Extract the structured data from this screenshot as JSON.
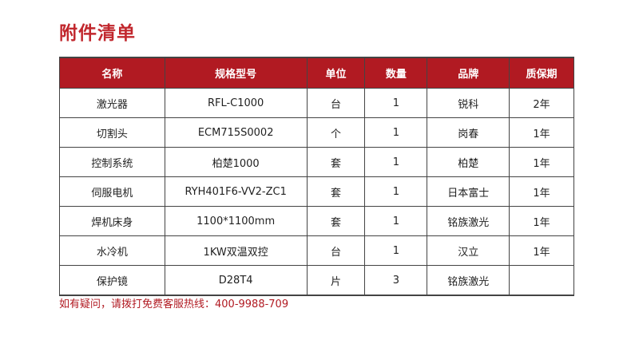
{
  "title": "附件清单",
  "headers": [
    "名称",
    "规格型号",
    "单位",
    "数量",
    "品牌",
    "质保期"
  ],
  "rows": [
    [
      "激光器",
      "RFL-C1000",
      "台",
      "1",
      "锐科",
      "2年"
    ],
    [
      "切割头",
      "ECM715S0002",
      "个",
      "1",
      "岗春",
      "1年"
    ],
    [
      "控制系统",
      "柏楚1000",
      "套",
      "1",
      "柏楚",
      "1年"
    ],
    [
      "伺服电机",
      "RYH401F6-VV2-ZC1",
      "套",
      "1",
      "日本富士",
      "1年"
    ],
    [
      "焊机床身",
      "1100*1100mm",
      "套",
      "1",
      "铭族激光",
      "1年"
    ],
    [
      "水冷机",
      "1KW双温双控",
      "台",
      "1",
      "汉立",
      "1年"
    ],
    [
      "保护镜",
      "D28T4",
      "片",
      "3",
      "铭族激光",
      ""
    ]
  ],
  "footer": "如有疑问，请拨打免费客服热线：400-9988-709",
  "colors": {
    "accent": "#b11a22"
  }
}
